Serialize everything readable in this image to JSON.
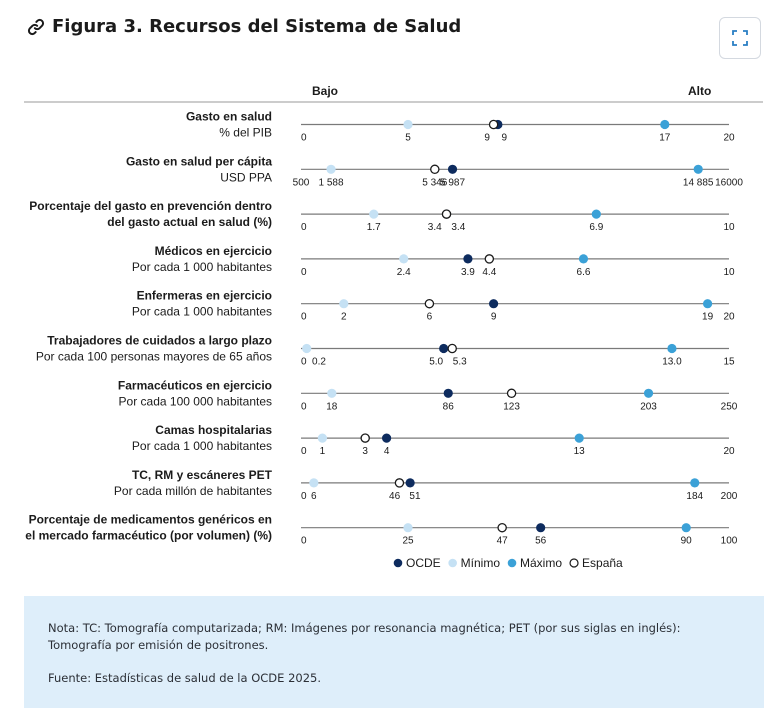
{
  "page": {
    "title": "Figura 3. Recursos del Sistema de Salud",
    "note": "Nota: TC: Tomografía computarizada; RM: Imágenes por resonancia magnética; PET (por sus siglas en inglés): Tomografía por emisión de positrones.",
    "source": "Fuente: Estadísticas de salud de la OCDE 2025."
  },
  "icons": {
    "title": "link-icon",
    "button": "expand-icon"
  },
  "colors": {
    "oecd": "#0d2b5e",
    "min": "#c5e1f4",
    "max": "#3ba1d7",
    "spain_fill": "#ffffff",
    "axis": "#7a7a7a"
  },
  "chart_data": {
    "type": "scatter",
    "scale_labels": {
      "low": "Bajo",
      "high": "Alto"
    },
    "legend": {
      "position": "bottom",
      "items": [
        {
          "key": "oecd",
          "label": "OCDE"
        },
        {
          "key": "min",
          "label": "Mínimo"
        },
        {
          "key": "max",
          "label": "Máximo"
        },
        {
          "key": "spain",
          "label": "España"
        }
      ]
    },
    "rows": [
      {
        "label": [
          "Gasto en salud",
          "% del PIB"
        ],
        "axis_min": 0,
        "axis_max": 20,
        "axis_min_label": "0",
        "axis_max_label": "20",
        "min": 5,
        "min_label": "5",
        "oecd": 9.2,
        "oecd_label": "9",
        "spain": 9.0,
        "spain_label": "9",
        "max": 17,
        "max_label": "17"
      },
      {
        "label": [
          "Gasto en salud per cápita",
          "USD PPA"
        ],
        "axis_min": 500,
        "axis_max": 16000,
        "axis_min_label": "500",
        "axis_max_label": "16000",
        "min": 1588,
        "min_label": "1 588",
        "oecd": 5987,
        "oecd_label": "5 987",
        "spain": 5346,
        "spain_label": "5 346",
        "max": 14885,
        "max_label": "14 885"
      },
      {
        "label": [
          "Porcentaje del gasto en prevención dentro",
          "del gasto actual en salud (%)"
        ],
        "axis_min": 0,
        "axis_max": 10,
        "axis_min_label": "0",
        "axis_max_label": "10",
        "min": 1.7,
        "min_label": "1.7",
        "oecd": 3.4,
        "oecd_label": "3.4",
        "spain": 3.4,
        "spain_label": "3.4",
        "max": 6.9,
        "max_label": "6.9"
      },
      {
        "label": [
          "Médicos en ejercicio",
          "Por cada 1 000 habitantes"
        ],
        "axis_min": 0,
        "axis_max": 10,
        "axis_min_label": "0",
        "axis_max_label": "10",
        "min": 2.4,
        "min_label": "2.4",
        "oecd": 3.9,
        "oecd_label": "3.9",
        "spain": 4.4,
        "spain_label": "4.4",
        "max": 6.6,
        "max_label": "6.6"
      },
      {
        "label": [
          "Enfermeras en ejercicio",
          "Por cada 1 000 habitantes"
        ],
        "axis_min": 0,
        "axis_max": 20,
        "axis_min_label": "0",
        "axis_max_label": "20",
        "min": 2,
        "min_label": "2",
        "oecd": 9,
        "oecd_label": "9",
        "spain": 6,
        "spain_label": "6",
        "max": 19,
        "max_label": "19"
      },
      {
        "label": [
          "Trabajadores de cuidados a largo plazo",
          "Por cada 100 personas mayores de 65 años"
        ],
        "axis_min": 0,
        "axis_max": 15,
        "axis_min_label": "0",
        "axis_max_label": "15",
        "min": 0.2,
        "min_label": "0.2",
        "oecd": 5.0,
        "oecd_label": "5.0",
        "spain": 5.3,
        "spain_label": "5.3",
        "max": 13.0,
        "max_label": "13.0"
      },
      {
        "label": [
          "Farmacéuticos en ejercicio",
          "Por cada 100 000 habitantes"
        ],
        "axis_min": 0,
        "axis_max": 250,
        "axis_min_label": "0",
        "axis_max_label": "250",
        "min": 18,
        "min_label": "18",
        "oecd": 86,
        "oecd_label": "86",
        "spain": 123,
        "spain_label": "123",
        "max": 203,
        "max_label": "203"
      },
      {
        "label": [
          "Camas hospitalarias",
          "Por cada 1 000 habitantes"
        ],
        "axis_min": 0,
        "axis_max": 20,
        "axis_min_label": "0",
        "axis_max_label": "20",
        "min": 1,
        "min_label": "1",
        "oecd": 4,
        "oecd_label": "4",
        "spain": 3,
        "spain_label": "3",
        "max": 13,
        "max_label": "13"
      },
      {
        "label": [
          "TC, RM y escáneres PET",
          "Por cada millón de habitantes"
        ],
        "axis_min": 0,
        "axis_max": 200,
        "axis_min_label": "0",
        "axis_max_label": "200",
        "min": 6,
        "min_label": "6",
        "oecd": 51,
        "oecd_label": "51",
        "spain": 46,
        "spain_label": "46",
        "max": 184,
        "max_label": "184"
      },
      {
        "label": [
          "Porcentaje de medicamentos genéricos en",
          "el mercado farmacéutico (por volumen) (%)"
        ],
        "axis_min": 0,
        "axis_max": 100,
        "axis_min_label": "0",
        "axis_max_label": "100",
        "min": 25,
        "min_label": "25",
        "oecd": 56,
        "oecd_label": "56",
        "spain": 47,
        "spain_label": "47",
        "max": 90,
        "max_label": "90"
      }
    ]
  }
}
